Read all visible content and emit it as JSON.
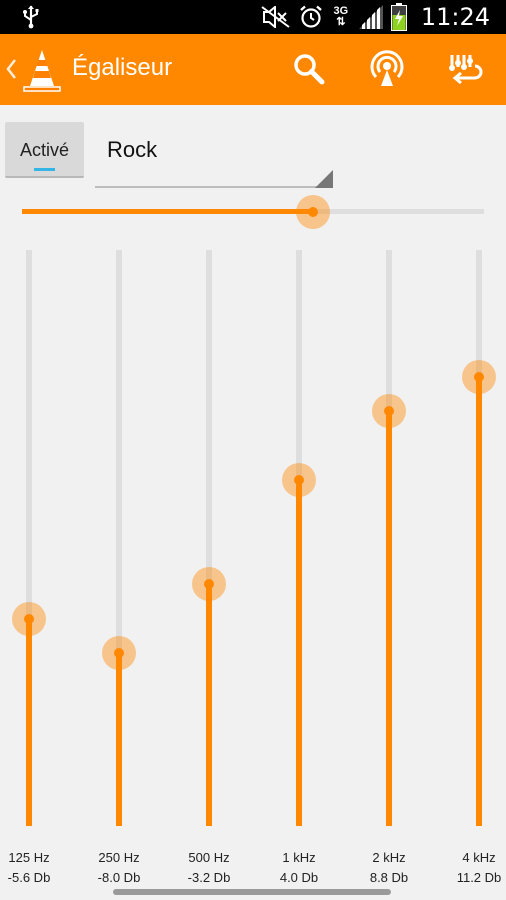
{
  "status_bar": {
    "time": "11:24",
    "network_type": "3G",
    "icons": [
      "usb-icon",
      "mute-icon",
      "alarm-icon",
      "network-3g-icon",
      "signal-icon",
      "battery-icon"
    ]
  },
  "action_bar": {
    "title": "Égaliseur",
    "icons": [
      "back-icon",
      "vlc-logo",
      "search-icon",
      "audio-output-icon",
      "equalizer-apply-icon"
    ],
    "accent_color": "#ff8800"
  },
  "controls": {
    "toggle_label": "Activé",
    "toggle_on": true,
    "preset": "Rock",
    "preamp_level": 0.63
  },
  "bands": [
    {
      "freq": "125 Hz",
      "gain": "-5.6 Db",
      "value_db": -5.6
    },
    {
      "freq": "250 Hz",
      "gain": "-8.0 Db",
      "value_db": -8.0
    },
    {
      "freq": "500 Hz",
      "gain": "-3.2 Db",
      "value_db": -3.2
    },
    {
      "freq": "1 kHz",
      "gain": "4.0 Db",
      "value_db": 4.0
    },
    {
      "freq": "2 kHz",
      "gain": "8.8 Db",
      "value_db": 8.8
    },
    {
      "freq": "4 kHz",
      "gain": "11.2 Db",
      "value_db": 11.2
    }
  ],
  "band_range_db": [
    -20,
    20
  ]
}
